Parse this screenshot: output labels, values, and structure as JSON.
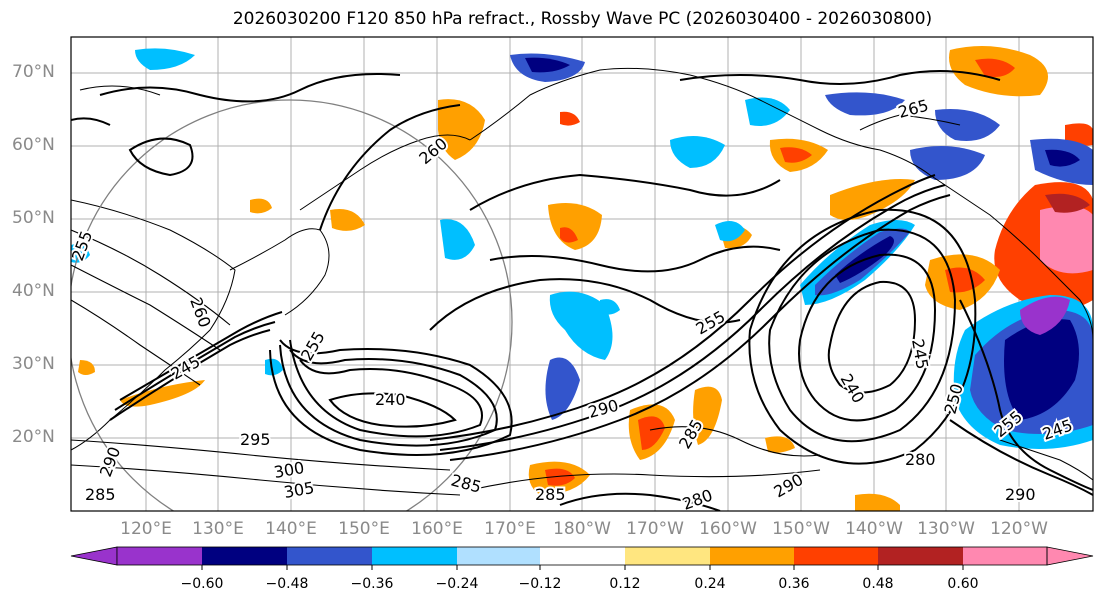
{
  "title": "2026030200 F120 850 hPa refract., Rossby Wave PC (2026030400 - 2026030800)",
  "latitude_labels": [
    "70°N",
    "60°N",
    "50°N",
    "40°N",
    "30°N",
    "20°N"
  ],
  "longitude_labels": [
    "120°E",
    "130°E",
    "140°E",
    "150°E",
    "160°E",
    "170°E",
    "180°W",
    "170°W",
    "160°W",
    "150°W",
    "140°W",
    "130°W",
    "120°W"
  ],
  "colorbar": {
    "tick_labels": [
      "−0.60",
      "−0.48",
      "−0.36",
      "−0.24",
      "−0.12",
      "0.12",
      "0.24",
      "0.36",
      "0.48",
      "0.60"
    ],
    "colors": [
      "#9933cc",
      "#000080",
      "#3355cc",
      "#00bfff",
      "#b0e0ff",
      "#ffffff",
      "#ffe680",
      "#ffa000",
      "#ff4000",
      "#b22222",
      "#ff88b0"
    ]
  },
  "contour_labels": [
    "255",
    "260",
    "245",
    "255",
    "240",
    "295",
    "300",
    "305",
    "285",
    "290",
    "265",
    "260",
    "255",
    "285",
    "290",
    "285",
    "280",
    "245",
    "240",
    "250",
    "255",
    "245",
    "280",
    "290",
    "285",
    "290"
  ],
  "palette": {
    "purple": "#9933cc",
    "navy": "#000080",
    "royal": "#3355cc",
    "sky": "#00bfff",
    "pale_blue": "#b0e0ff",
    "yellow": "#ffe680",
    "orange": "#ffa000",
    "red_orange": "#ff4000",
    "firebrick": "#b22222",
    "pink": "#ff88b0"
  }
}
